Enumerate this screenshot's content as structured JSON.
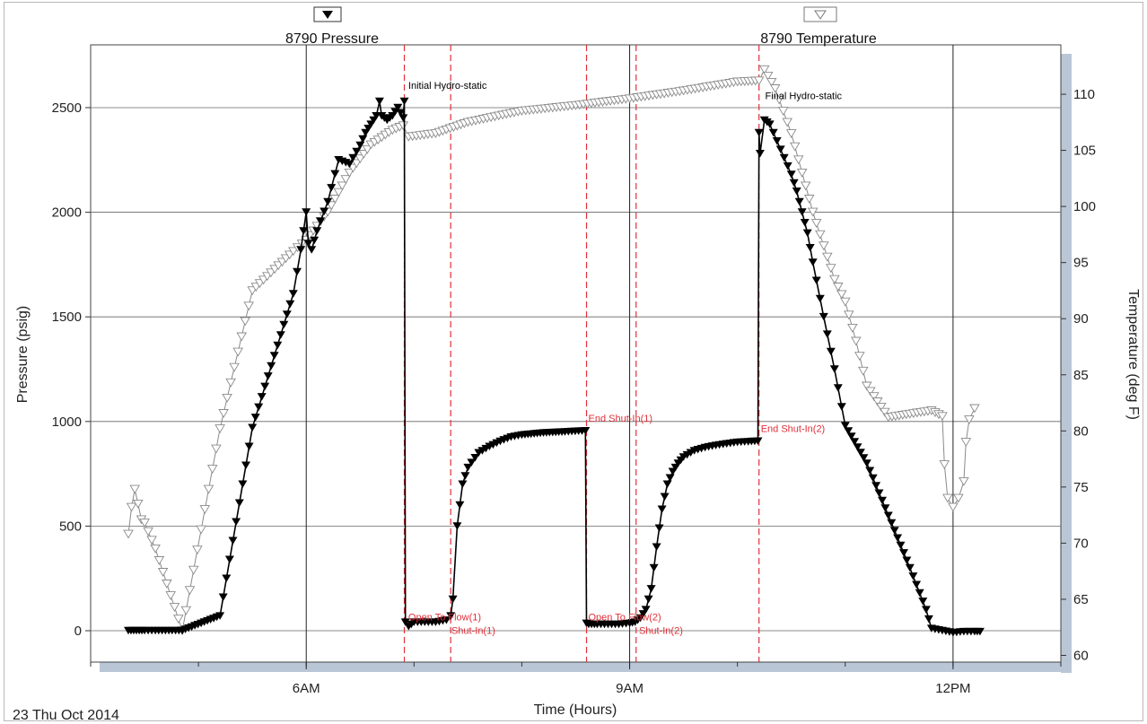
{
  "chart_data": {
    "type": "line",
    "date_label": "23 Thu Oct 2014",
    "xlabel": "Time (Hours)",
    "ylabel": "Pressure (psig)",
    "y2label": "Temperature (deg F)",
    "x_range_hours": [
      4.0,
      13.0
    ],
    "ylim": [
      -150,
      2800
    ],
    "y2lim": [
      59.4,
      114.4
    ],
    "x_ticks": [
      {
        "h": 6,
        "label": "6AM"
      },
      {
        "h": 9,
        "label": "9AM"
      },
      {
        "h": 12,
        "label": "12PM"
      }
    ],
    "y_ticks": [
      0,
      500,
      1000,
      1500,
      2000,
      2500
    ],
    "y2_ticks": [
      60,
      65,
      70,
      75,
      80,
      85,
      90,
      95,
      100,
      105,
      110
    ],
    "grid": true,
    "legend": {
      "position": "top",
      "items": [
        {
          "name": "8790 Pressure",
          "marker": "filled-down-triangle"
        },
        {
          "name": "8790 Temperature",
          "marker": "open-down-triangle"
        }
      ]
    },
    "colors": {
      "pressure": "#000000",
      "temperature": "#8a8a8a",
      "events": "#e0303a",
      "shadow": "#b9c6d6"
    },
    "event_lines_hours": [
      6.91,
      7.34,
      8.6,
      9.06,
      10.2
    ],
    "annotations": [
      {
        "text": "Initial Hydro-static",
        "h": 6.93,
        "p": 2590,
        "color": "#000000"
      },
      {
        "text": "Final Hydro-static",
        "h": 10.24,
        "p": 2540,
        "color": "#000000"
      },
      {
        "text": "Open To Flow(1)",
        "h": 6.93,
        "p": 50,
        "color": "#e0303a"
      },
      {
        "text": "Shut-In(1)",
        "h": 7.33,
        "p": -15,
        "color": "#e0303a"
      },
      {
        "text": "End Shut-In(1)",
        "h": 8.6,
        "p": 1000,
        "color": "#e0303a"
      },
      {
        "text": "Open To Flow(2)",
        "h": 8.6,
        "p": 50,
        "color": "#e0303a"
      },
      {
        "text": "Shut-In(2)",
        "h": 9.07,
        "p": -15,
        "color": "#e0303a"
      },
      {
        "text": "End Shut-In(2)",
        "h": 10.2,
        "p": 950,
        "color": "#e0303a"
      }
    ],
    "series": [
      {
        "name": "8790 Pressure",
        "axis": "left",
        "x": [
          4.35,
          4.4,
          4.45,
          4.5,
          4.6,
          4.85,
          5.2,
          5.5,
          5.88,
          5.95,
          6.0,
          6.02,
          6.05,
          6.1,
          6.2,
          6.3,
          6.4,
          6.5,
          6.55,
          6.6,
          6.65,
          6.68,
          6.7,
          6.75,
          6.8,
          6.85,
          6.9,
          6.91,
          6.92,
          6.95,
          7.0,
          7.1,
          7.2,
          7.3,
          7.34,
          7.36,
          7.4,
          7.45,
          7.5,
          7.6,
          7.7,
          7.8,
          7.9,
          8.0,
          8.2,
          8.4,
          8.59,
          8.6,
          8.62,
          8.7,
          8.8,
          8.9,
          9.0,
          9.05,
          9.1,
          9.15,
          9.2,
          9.25,
          9.3,
          9.35,
          9.4,
          9.45,
          9.5,
          9.6,
          9.7,
          9.8,
          9.9,
          10.0,
          10.1,
          10.19,
          10.2,
          10.21,
          10.25,
          10.3,
          10.4,
          10.5,
          10.55,
          10.6,
          10.65,
          10.7,
          10.8,
          10.9,
          11.0,
          11.2,
          11.4,
          11.6,
          11.75,
          11.8,
          11.9,
          12.0,
          12.1,
          12.2,
          12.25
        ],
        "y": [
          0,
          0,
          0,
          0,
          0,
          0,
          70,
          970,
          1610,
          1820,
          2000,
          1850,
          1820,
          1910,
          2050,
          2250,
          2230,
          2320,
          2380,
          2420,
          2460,
          2530,
          2460,
          2440,
          2460,
          2500,
          2450,
          2530,
          40,
          20,
          40,
          40,
          40,
          50,
          70,
          150,
          500,
          700,
          780,
          850,
          880,
          905,
          925,
          935,
          945,
          950,
          955,
          35,
          30,
          30,
          30,
          30,
          35,
          40,
          60,
          100,
          200,
          400,
          580,
          700,
          760,
          800,
          830,
          860,
          875,
          885,
          893,
          900,
          903,
          906,
          2380,
          2280,
          2440,
          2420,
          2300,
          2180,
          2100,
          2000,
          1900,
          1760,
          1500,
          1250,
          980,
          800,
          550,
          300,
          100,
          10,
          0,
          -10,
          -5,
          -5,
          -5
        ]
      },
      {
        "name": "8790 Temperature",
        "axis": "right",
        "x": [
          4.35,
          4.38,
          4.41,
          4.44,
          4.47,
          4.5,
          4.6,
          4.85,
          5.2,
          5.5,
          5.88,
          6.0,
          6.2,
          6.4,
          6.6,
          6.8,
          6.9,
          6.95,
          7.2,
          7.5,
          8.0,
          8.5,
          9.0,
          9.5,
          10.0,
          10.2,
          10.25,
          10.35,
          10.5,
          10.7,
          10.9,
          11.0,
          11.1,
          11.2,
          11.4,
          11.6,
          11.8,
          11.9,
          11.92,
          11.95,
          12.0,
          12.05,
          12.1,
          12.12,
          12.15,
          12.2
        ],
        "y": [
          70.8,
          73.2,
          74.8,
          73.5,
          72.1,
          71.8,
          69.5,
          62.2,
          80.2,
          92.5,
          96.0,
          97.0,
          99.5,
          103.0,
          105.5,
          106.8,
          107.2,
          106.2,
          106.5,
          107.5,
          108.5,
          109.0,
          109.6,
          110.3,
          111.1,
          111.2,
          112.2,
          110.5,
          106.5,
          99.5,
          93.5,
          91.5,
          88.0,
          84.0,
          81.2,
          81.5,
          81.8,
          81.3,
          77.0,
          74.0,
          73.2,
          74.0,
          75.5,
          79.0,
          81.0,
          82.0
        ]
      }
    ]
  }
}
